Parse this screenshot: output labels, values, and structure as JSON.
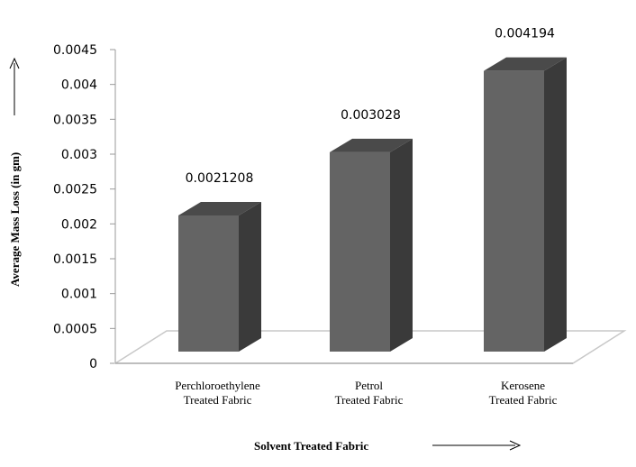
{
  "chart_data": {
    "type": "bar",
    "categories": [
      [
        "Perchloroethylene",
        "Treated Fabric"
      ],
      [
        "Petrol",
        "Treated Fabric"
      ],
      [
        "Kerosene",
        "Treated Fabric"
      ]
    ],
    "values": [
      0.0021208,
      0.003028,
      0.004194
    ],
    "data_labels": [
      "0.0021208",
      "0.003028",
      "0.004194"
    ],
    "yticks": [
      "0",
      "0.0005",
      "0.001",
      "0.0015",
      "0.002",
      "0.0025",
      "0.003",
      "0.0035",
      "0.004",
      "0.0045"
    ],
    "ylim": [
      0,
      0.0045
    ],
    "xlabel": "Solvent Treated Fabric",
    "ylabel": "Average Mass Loss (in gm)",
    "grid": false,
    "style": "3d-column",
    "colors": {
      "bar_front": "#646464",
      "bar_side": "#3a3a3a",
      "bar_top": "#4a4a4a",
      "floor": "#ffffff",
      "floor_edge": "#c8c8c8"
    }
  }
}
